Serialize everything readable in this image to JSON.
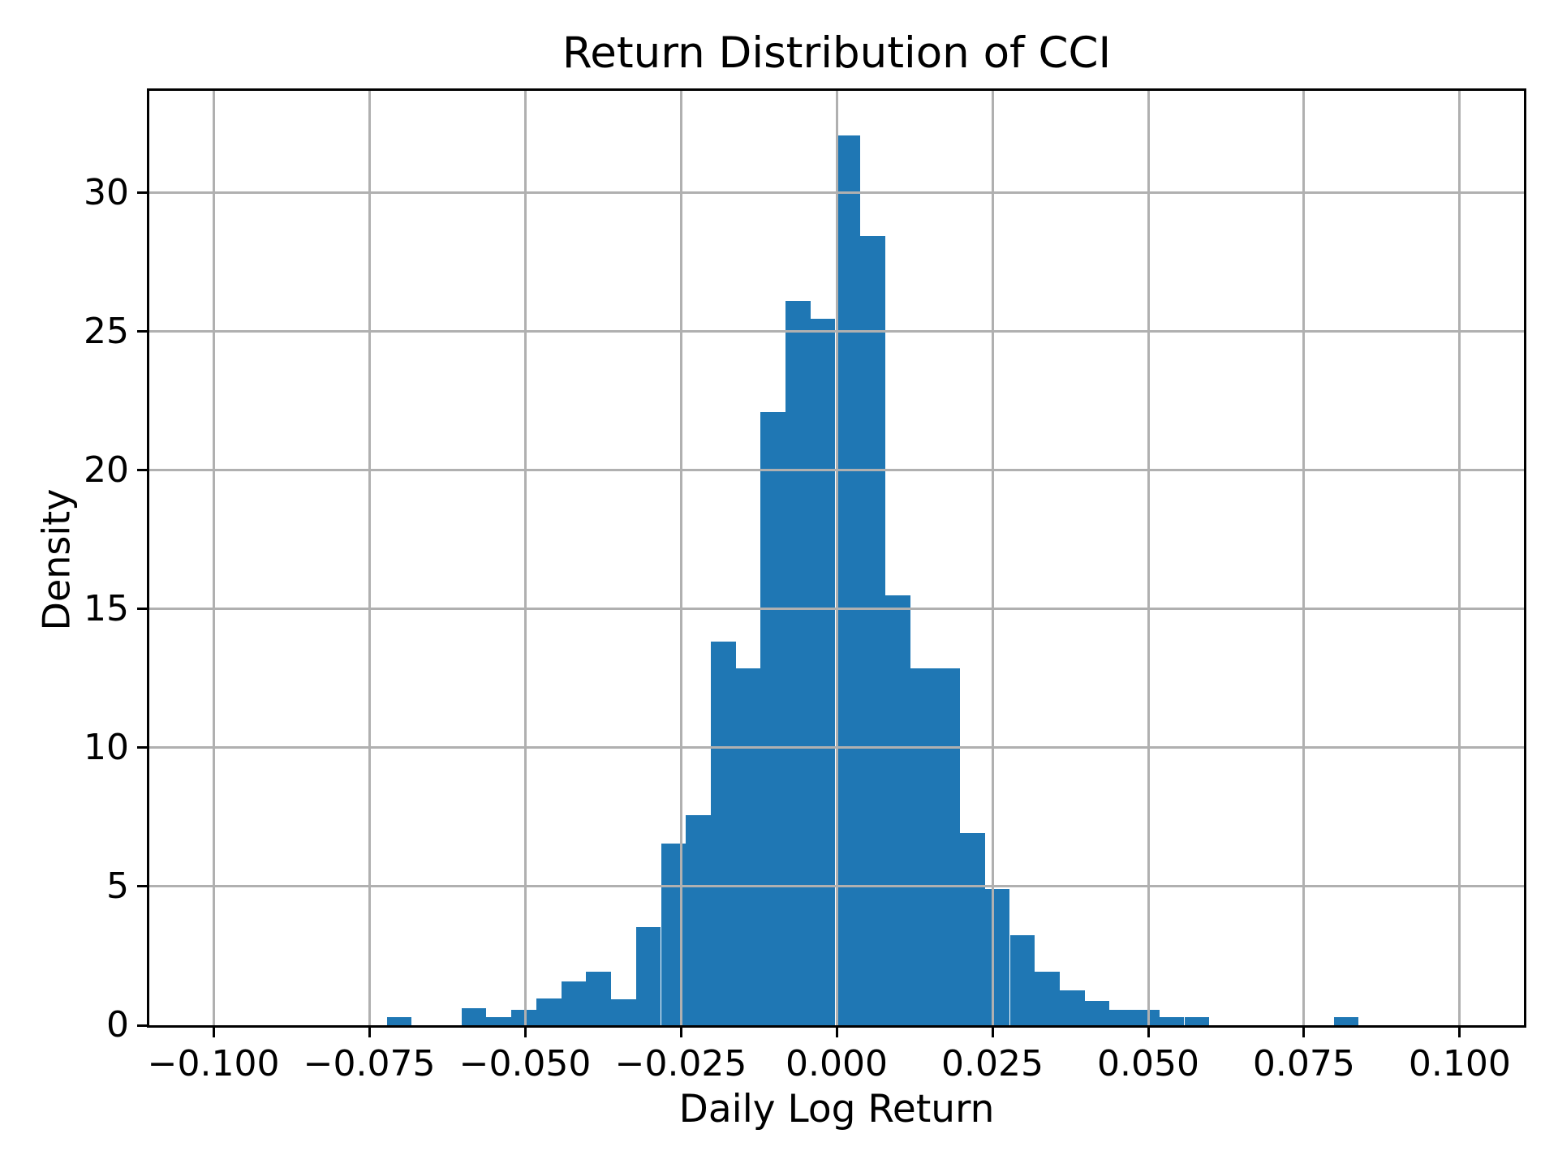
{
  "chart_data": {
    "type": "bar",
    "subtype": "histogram",
    "title": "Return Distribution of CCI",
    "xlabel": "Daily Log Return",
    "ylabel": "Density",
    "grid": true,
    "legend": false,
    "xlim": [
      -0.1103,
      0.1103
    ],
    "ylim": [
      0,
      33.67
    ],
    "bar_color": "#1f77b4",
    "grid_color": "#b0b0b0",
    "axis_color": "#000000",
    "background_color": "#ffffff",
    "xticks": [
      {
        "value": -0.1,
        "label": "−0.100"
      },
      {
        "value": -0.075,
        "label": "−0.075"
      },
      {
        "value": -0.05,
        "label": "−0.050"
      },
      {
        "value": -0.025,
        "label": "−0.025"
      },
      {
        "value": 0.0,
        "label": "0.000"
      },
      {
        "value": 0.025,
        "label": "0.025"
      },
      {
        "value": 0.05,
        "label": "0.050"
      },
      {
        "value": 0.075,
        "label": "0.075"
      },
      {
        "value": 0.1,
        "label": "0.100"
      }
    ],
    "yticks": [
      {
        "value": 0,
        "label": "0"
      },
      {
        "value": 5,
        "label": "5"
      },
      {
        "value": 10,
        "label": "10"
      },
      {
        "value": 15,
        "label": "15"
      },
      {
        "value": 20,
        "label": "20"
      },
      {
        "value": 25,
        "label": "25"
      },
      {
        "value": 30,
        "label": "30"
      }
    ],
    "bin_edges": [
      -0.0722,
      -0.0682,
      -0.0642,
      -0.0602,
      -0.0562,
      -0.0522,
      -0.0482,
      -0.0442,
      -0.0402,
      -0.0362,
      -0.0322,
      -0.0282,
      -0.0242,
      -0.0202,
      -0.0162,
      -0.0122,
      -0.0082,
      -0.0042,
      -0.0002,
      0.0038,
      0.0078,
      0.0118,
      0.0158,
      0.0198,
      0.0238,
      0.0278,
      0.0318,
      0.0358,
      0.0398,
      0.0438,
      0.0478,
      0.0518,
      0.0558,
      0.0598,
      0.0638,
      0.0678,
      0.0718,
      0.0758,
      0.0798,
      0.0838
    ],
    "densities": [
      0.3,
      0,
      0,
      0.61,
      0.3,
      0.56,
      0.98,
      1.58,
      1.93,
      0.93,
      3.55,
      6.56,
      7.56,
      13.82,
      12.85,
      22.1,
      26.1,
      25.46,
      32.05,
      28.43,
      15.5,
      12.85,
      12.85,
      6.94,
      4.9,
      3.26,
      1.94,
      1.26,
      0.89,
      0.57,
      0.57,
      0.28,
      0.28,
      0,
      0,
      0,
      0,
      0,
      0.3
    ]
  }
}
